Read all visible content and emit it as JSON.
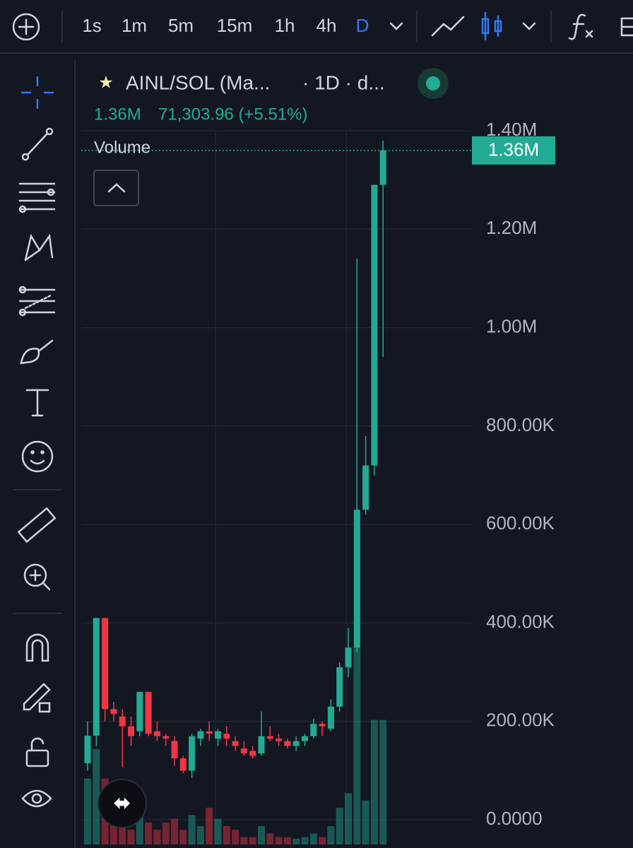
{
  "toolbar": {
    "intervals": [
      "1s",
      "1m",
      "5m",
      "15m",
      "1h",
      "4h",
      "D"
    ]
  },
  "header": {
    "symbol": "AINL/SOL (Ma...",
    "interval": "· 1D · d...",
    "change": "71,303.96 (+5.51%)"
  },
  "chart_data": {
    "type": "candlestick",
    "pane_label": "Volume",
    "open": [
      115000,
      171000,
      410000,
      225000,
      210000,
      190000,
      180000,
      260000,
      180000,
      170000,
      160000,
      125000,
      100000,
      165000,
      180000,
      165000,
      175000,
      160000,
      145000,
      140000,
      135000,
      170000,
      165000,
      160000,
      150000,
      160000,
      170000,
      195000,
      185000,
      230000,
      310000,
      350000,
      630000,
      720000,
      1290000
    ],
    "high": [
      200000,
      410000,
      410000,
      240000,
      225000,
      210000,
      260000,
      260000,
      200000,
      175000,
      170000,
      130000,
      175000,
      185000,
      200000,
      185000,
      190000,
      170000,
      160000,
      150000,
      220000,
      190000,
      175000,
      165000,
      170000,
      175000,
      205000,
      200000,
      245000,
      320000,
      390000,
      1140000,
      780000,
      1290000,
      1380000
    ],
    "low": [
      100000,
      150000,
      200000,
      200000,
      107000,
      150000,
      170000,
      170000,
      160000,
      150000,
      110000,
      95000,
      85000,
      150000,
      160000,
      150000,
      150000,
      140000,
      130000,
      125000,
      130000,
      160000,
      150000,
      145000,
      140000,
      150000,
      165000,
      170000,
      180000,
      220000,
      290000,
      340000,
      620000,
      700000,
      940000
    ],
    "close": [
      171000,
      410000,
      225000,
      215000,
      190000,
      170000,
      260000,
      175000,
      170000,
      165000,
      125000,
      100000,
      170000,
      180000,
      175000,
      180000,
      165000,
      150000,
      135000,
      130000,
      170000,
      165000,
      160000,
      150000,
      160000,
      170000,
      195000,
      190000,
      230000,
      310000,
      350000,
      630000,
      720000,
      1290000,
      1360000
    ],
    "volume": [
      90,
      130,
      90,
      50,
      30,
      20,
      40,
      30,
      20,
      30,
      35,
      20,
      40,
      25,
      50,
      35,
      25,
      20,
      10,
      10,
      25,
      15,
      10,
      10,
      8,
      10,
      15,
      10,
      25,
      50,
      70,
      270,
      60,
      170,
      170
    ],
    "ylim": [
      -50000,
      1400000
    ],
    "yticks": [
      {
        "value": 0,
        "label": "0.0000"
      },
      {
        "value": 200000,
        "label": "200.00K"
      },
      {
        "value": 400000,
        "label": "400.00K"
      },
      {
        "value": 600000,
        "label": "600.00K"
      },
      {
        "value": 800000,
        "label": "800.00K"
      },
      {
        "value": 1000000,
        "label": "1.00M"
      },
      {
        "value": 1200000,
        "label": "1.20M"
      },
      {
        "value": 1400000,
        "label": "1.40M"
      }
    ],
    "last_price": {
      "value": 1360000,
      "label": "1.36M"
    },
    "up_color": "#22ab94",
    "down_color": "#f23645",
    "grid": true
  }
}
